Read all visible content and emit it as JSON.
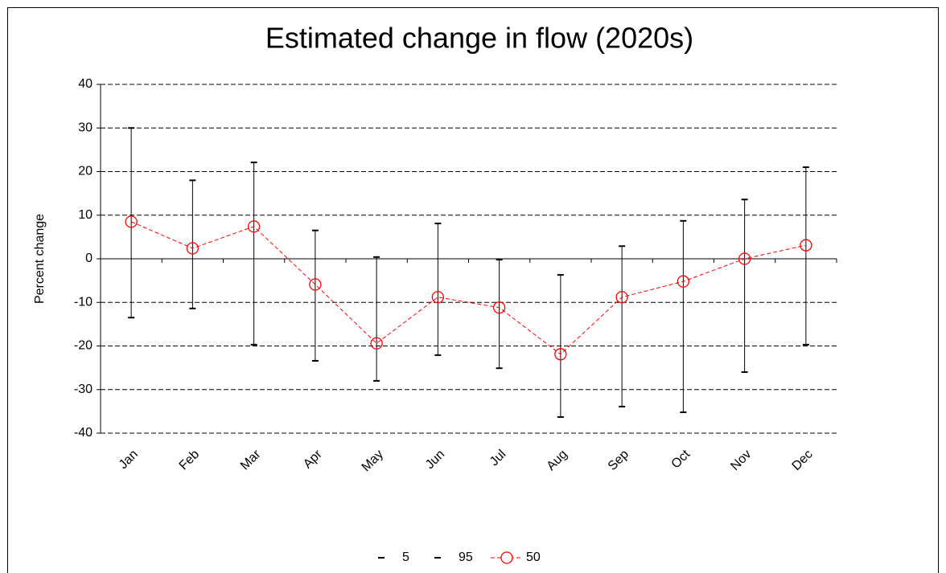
{
  "chart_data": {
    "type": "errorbar",
    "title": "Estimated change in flow (2020s)",
    "y_label": "Percent change",
    "categories": [
      "Jan",
      "Feb",
      "Mar",
      "Apr",
      "May",
      "Jun",
      "Jul",
      "Aug",
      "Sep",
      "Oct",
      "Nov",
      "Dec"
    ],
    "series": [
      {
        "name": "5",
        "color": "#000000",
        "values": [
          -13.5,
          -11.4,
          -19.7,
          -23.4,
          -28,
          -22.1,
          -25.1,
          -36.3,
          -33.9,
          -35.2,
          -26,
          -19.7
        ]
      },
      {
        "name": "95",
        "color": "#000000",
        "values": [
          30,
          18,
          22.1,
          6.5,
          0.4,
          8.1,
          -0.2,
          -3.7,
          2.9,
          8.7,
          13.6,
          21
        ]
      },
      {
        "name": "50",
        "color": "#ff0000",
        "values": [
          8.5,
          2.4,
          7.4,
          -5.9,
          -19.4,
          -8.8,
          -11.2,
          -21.9,
          -8.8,
          -5.2,
          0,
          3.1
        ]
      }
    ],
    "ylim": [
      -40,
      40
    ],
    "yticks": [
      -40,
      -30,
      -20,
      -10,
      0,
      10,
      20,
      30,
      40
    ],
    "grid": true,
    "legend": "bottom"
  }
}
